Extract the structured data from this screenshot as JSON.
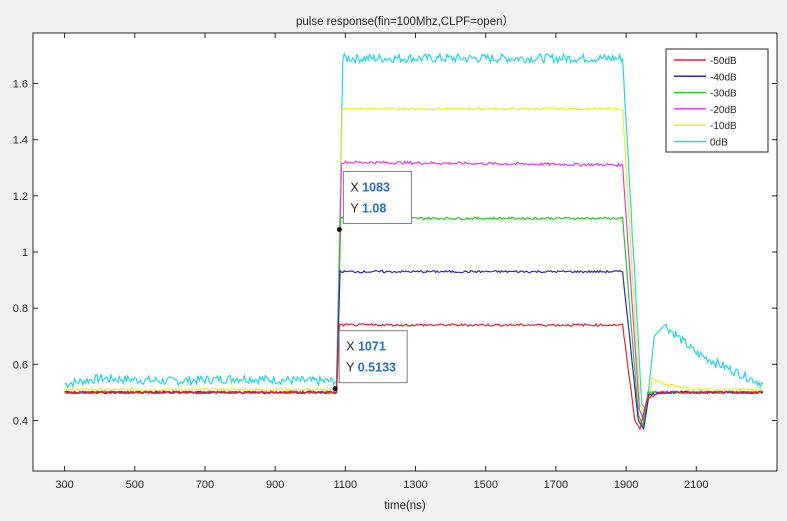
{
  "chart_data": {
    "type": "line",
    "title": "pulse response(fin=100Mhz,CLPF=open）",
    "xlabel": "time(ns)",
    "ylabel": "",
    "xlim": [
      210,
      2330
    ],
    "ylim": [
      0.22,
      1.78
    ],
    "x_ticks": [
      300,
      500,
      700,
      900,
      1100,
      1300,
      1500,
      1700,
      1900,
      2100
    ],
    "y_ticks": [
      0.4,
      0.6,
      0.8,
      1,
      1.2,
      1.4,
      1.6
    ],
    "grid": false,
    "legend_position": "top-right",
    "series": [
      {
        "name": "-50dB",
        "color": "#e8262a",
        "noise": 0.004,
        "points": [
          [
            300,
            0.5
          ],
          [
            1075,
            0.5
          ],
          [
            1083,
            0.74
          ],
          [
            1890,
            0.74
          ],
          [
            1925,
            0.4
          ],
          [
            1940,
            0.37
          ],
          [
            1960,
            0.48
          ],
          [
            2000,
            0.5
          ],
          [
            2290,
            0.5
          ]
        ]
      },
      {
        "name": "-40dB",
        "color": "#2b2bb5",
        "noise": 0.004,
        "points": [
          [
            300,
            0.5
          ],
          [
            1075,
            0.5
          ],
          [
            1085,
            0.93
          ],
          [
            1890,
            0.93
          ],
          [
            1935,
            0.4
          ],
          [
            1950,
            0.37
          ],
          [
            1965,
            0.49
          ],
          [
            2000,
            0.5
          ],
          [
            2290,
            0.5
          ]
        ]
      },
      {
        "name": "-30dB",
        "color": "#28c828",
        "noise": 0.004,
        "points": [
          [
            300,
            0.5
          ],
          [
            1075,
            0.5
          ],
          [
            1087,
            1.12
          ],
          [
            1890,
            1.12
          ],
          [
            1935,
            0.42
          ],
          [
            1948,
            0.38
          ],
          [
            1962,
            0.5
          ],
          [
            2290,
            0.5
          ]
        ]
      },
      {
        "name": "-20dB",
        "color": "#e040e0",
        "noise": 0.005,
        "points": [
          [
            300,
            0.5
          ],
          [
            1075,
            0.5
          ],
          [
            1089,
            1.32
          ],
          [
            1890,
            1.31
          ],
          [
            1938,
            0.44
          ],
          [
            1950,
            0.4
          ],
          [
            1965,
            0.5
          ],
          [
            2290,
            0.5
          ]
        ]
      },
      {
        "name": "-10dB",
        "color": "#eeee22",
        "noise": 0.004,
        "points": [
          [
            300,
            0.51
          ],
          [
            1075,
            0.51
          ],
          [
            1091,
            1.51
          ],
          [
            1890,
            1.51
          ],
          [
            1940,
            0.45
          ],
          [
            1955,
            0.43
          ],
          [
            1975,
            0.55
          ],
          [
            2010,
            0.53
          ],
          [
            2100,
            0.51
          ],
          [
            2290,
            0.51
          ]
        ]
      },
      {
        "name": "0dB",
        "color": "#22d6e6",
        "noise": 0.016,
        "points": [
          [
            300,
            0.53
          ],
          [
            400,
            0.55
          ],
          [
            600,
            0.54
          ],
          [
            800,
            0.55
          ],
          [
            1000,
            0.54
          ],
          [
            1075,
            0.54
          ],
          [
            1093,
            1.69
          ],
          [
            1890,
            1.69
          ],
          [
            1945,
            0.46
          ],
          [
            1958,
            0.43
          ],
          [
            1980,
            0.7
          ],
          [
            2010,
            0.74
          ],
          [
            2100,
            0.64
          ],
          [
            2200,
            0.58
          ],
          [
            2290,
            0.53
          ]
        ]
      }
    ],
    "datatips": [
      {
        "x_label": "X",
        "x_value": "1083",
        "y_label": "Y",
        "y_value": "1.08",
        "x": 1083,
        "y": 1.08
      },
      {
        "x_label": "X",
        "x_value": "1071",
        "y_label": "Y",
        "y_value": "0.5133",
        "x": 1071,
        "y": 0.5133
      }
    ]
  }
}
